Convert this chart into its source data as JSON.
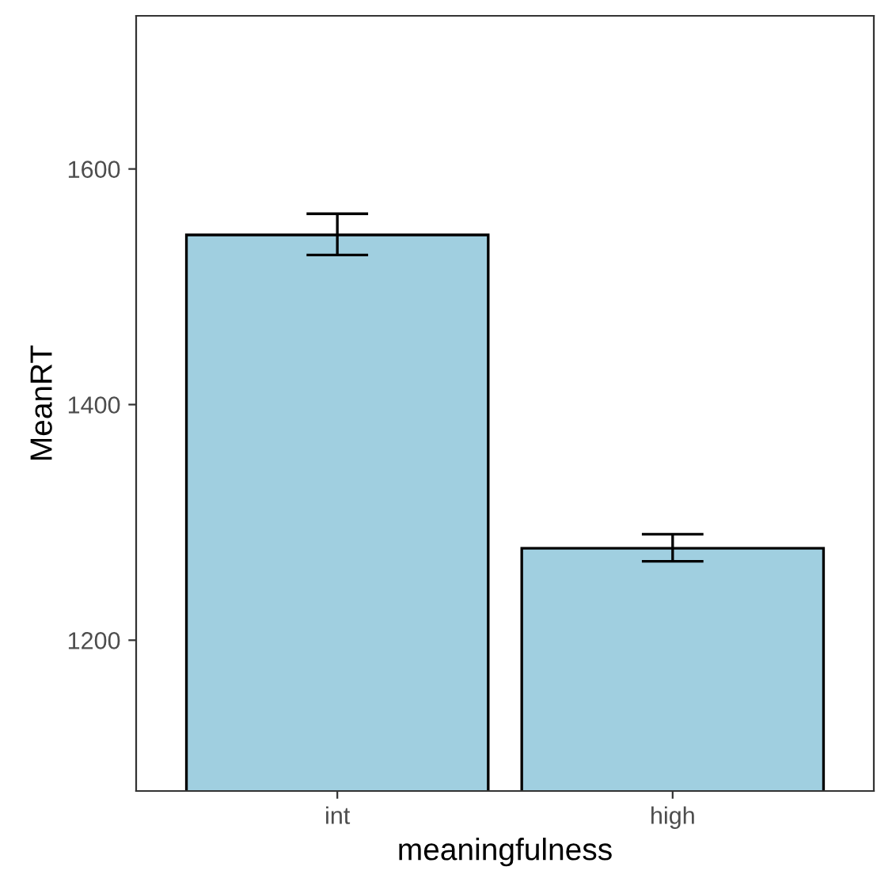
{
  "chart_data": {
    "type": "bar",
    "xlabel": "meaningfulness",
    "ylabel": "MeanRT",
    "categories": [
      "int",
      "high"
    ],
    "values": [
      1544,
      1278
    ],
    "errors": [
      [
        1527,
        1562
      ],
      [
        1267,
        1290
      ]
    ],
    "color": "#a0cfe0",
    "ylim": [
      1072,
      1730
    ],
    "yticks": [
      1200,
      1400,
      1600
    ],
    "grid": false,
    "legend": false
  }
}
